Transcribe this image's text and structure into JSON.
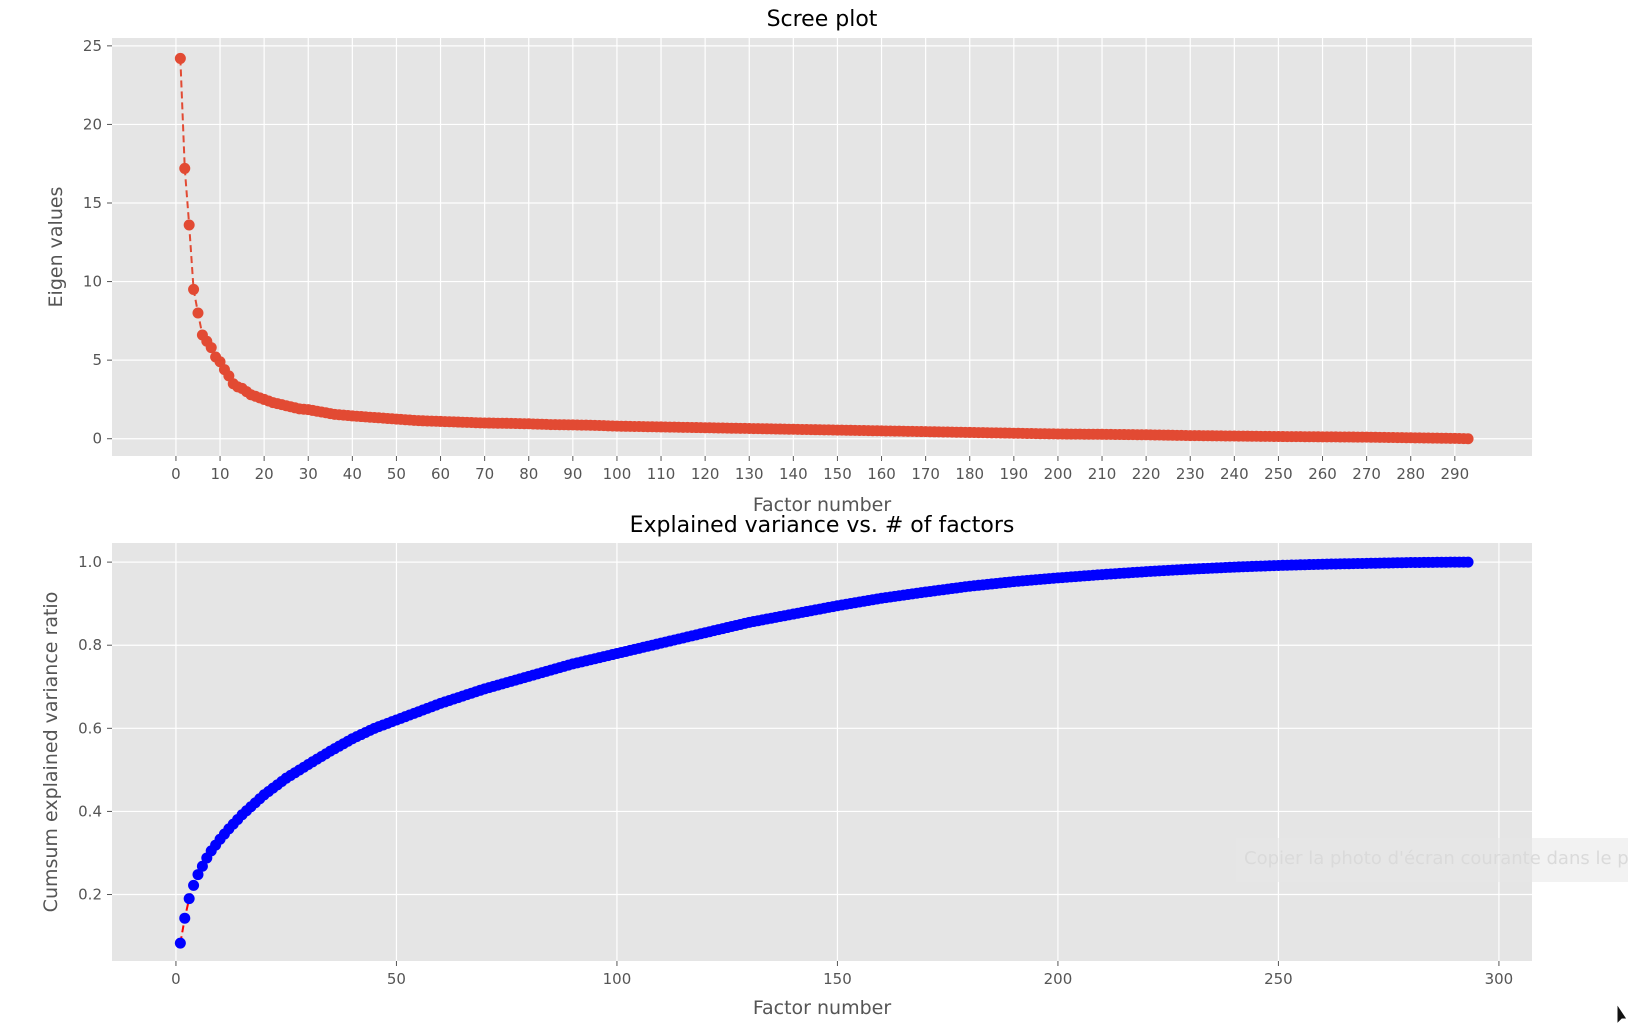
{
  "chart_data": [
    {
      "type": "line",
      "title": "Scree plot",
      "xlabel": "Factor number",
      "ylabel": "Eigen values",
      "xlim": [
        -14.5,
        307.5
      ],
      "ylim": [
        -1.1,
        25.5
      ],
      "xticks": [
        0,
        10,
        20,
        30,
        40,
        50,
        60,
        70,
        80,
        90,
        100,
        110,
        120,
        130,
        140,
        150,
        160,
        170,
        180,
        190,
        200,
        210,
        220,
        230,
        240,
        250,
        260,
        270,
        280,
        290
      ],
      "yticks": [
        0,
        5,
        10,
        15,
        20,
        25
      ],
      "grid": true,
      "marker": "circle",
      "linestyle": "dashed",
      "color": "#E24A33",
      "n_points": 293,
      "series": [
        {
          "x": [
            1,
            2,
            3,
            4,
            5,
            6,
            7,
            8,
            9,
            10,
            11,
            12,
            13,
            14,
            15,
            16,
            17,
            18,
            19,
            20,
            22,
            25,
            28,
            30,
            33,
            36,
            40,
            45,
            50,
            55,
            60,
            65,
            70,
            75,
            80,
            85,
            90,
            95,
            100,
            110,
            120,
            130,
            140,
            150,
            160,
            170,
            180,
            190,
            200,
            210,
            220,
            230,
            240,
            250,
            260,
            270,
            280,
            290,
            293
          ],
          "y": [
            24.2,
            17.2,
            13.6,
            9.5,
            8.0,
            6.6,
            6.2,
            5.8,
            5.2,
            4.9,
            4.4,
            4.0,
            3.5,
            3.3,
            3.2,
            3.0,
            2.8,
            2.7,
            2.6,
            2.5,
            2.3,
            2.1,
            1.9,
            1.85,
            1.7,
            1.55,
            1.45,
            1.35,
            1.25,
            1.15,
            1.1,
            1.05,
            1.0,
            0.98,
            0.95,
            0.9,
            0.88,
            0.85,
            0.8,
            0.75,
            0.7,
            0.65,
            0.6,
            0.55,
            0.5,
            0.45,
            0.4,
            0.35,
            0.3,
            0.28,
            0.25,
            0.2,
            0.17,
            0.14,
            0.12,
            0.1,
            0.06,
            0.02,
            0.0
          ]
        }
      ]
    },
    {
      "type": "scatter",
      "title": "Explained variance vs. # of factors",
      "xlabel": "Factor number",
      "ylabel": "Cumsum explained variance ratio",
      "xlim": [
        -14.5,
        307.5
      ],
      "ylim": [
        0.04,
        1.046
      ],
      "xticks": [
        0,
        50,
        100,
        150,
        200,
        250,
        300
      ],
      "yticks": [
        0.2,
        0.4,
        0.6,
        0.8,
        1.0
      ],
      "grid": true,
      "marker": "circle",
      "line_color": "#ff0000",
      "linestyle": "dashed",
      "color": "#0000ff",
      "n_points": 293,
      "series": [
        {
          "x": [
            1,
            2,
            3,
            4,
            5,
            6,
            7,
            8,
            10,
            12,
            15,
            20,
            25,
            30,
            35,
            40,
            45,
            50,
            60,
            70,
            80,
            90,
            100,
            110,
            120,
            130,
            140,
            150,
            160,
            170,
            180,
            190,
            200,
            210,
            220,
            230,
            240,
            250,
            260,
            270,
            280,
            290,
            293
          ],
          "y": [
            0.083,
            0.143,
            0.19,
            0.222,
            0.248,
            0.268,
            0.288,
            0.305,
            0.333,
            0.358,
            0.392,
            0.44,
            0.48,
            0.513,
            0.545,
            0.575,
            0.6,
            0.62,
            0.66,
            0.695,
            0.725,
            0.755,
            0.78,
            0.805,
            0.83,
            0.855,
            0.875,
            0.895,
            0.913,
            0.928,
            0.942,
            0.953,
            0.962,
            0.97,
            0.977,
            0.983,
            0.988,
            0.992,
            0.995,
            0.997,
            0.999,
            1.0,
            1.0
          ]
        }
      ]
    }
  ],
  "overlay": {
    "tooltip_text": "Copier la photo d'écran courante dans le presse-papiers"
  }
}
